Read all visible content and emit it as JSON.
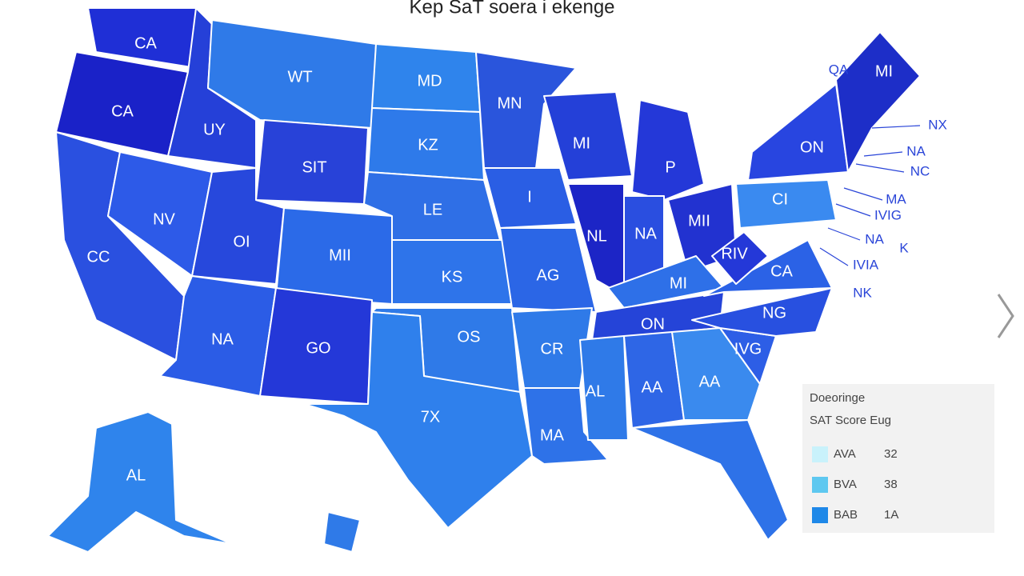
{
  "title": "Kep  SaT soera i ekenge",
  "regions": [
    {
      "label": "CA",
      "color": "#1f2fd6"
    },
    {
      "label": "CA",
      "color": "#1a22c8"
    },
    {
      "label": "CC",
      "color": "#2a50e0"
    },
    {
      "label": "NV",
      "color": "#2d5ae8"
    },
    {
      "label": "UY",
      "color": "#2540d8"
    },
    {
      "label": "WT",
      "color": "#2f7ae8"
    },
    {
      "label": "SIT",
      "color": "#2842d8"
    },
    {
      "label": "OI",
      "color": "#2748dc"
    },
    {
      "label": "MII",
      "color": "#2b6ae8"
    },
    {
      "label": "NA",
      "color": "#2b5ce6"
    },
    {
      "label": "GO",
      "color": "#2438d8"
    },
    {
      "label": "MD",
      "color": "#2f84ec"
    },
    {
      "label": "KZ",
      "color": "#2e7aea"
    },
    {
      "label": "LE",
      "color": "#2f6fe6"
    },
    {
      "label": "KS",
      "color": "#2e74ea"
    },
    {
      "label": "OS",
      "color": "#2f7ae8"
    },
    {
      "label": "7X",
      "color": "#2f80ec"
    },
    {
      "label": "MN",
      "color": "#2a55dc"
    },
    {
      "label": "I",
      "color": "#2a5ee4"
    },
    {
      "label": "AG",
      "color": "#2b66e6"
    },
    {
      "label": "CR",
      "color": "#2f7ae8"
    },
    {
      "label": "MA",
      "color": "#2e72e8"
    },
    {
      "label": "MI",
      "color": "#2440d8"
    },
    {
      "label": "P",
      "color": "#2438d8"
    },
    {
      "label": "NL",
      "color": "#1c25c6"
    },
    {
      "label": "NA",
      "color": "#2a4ee0"
    },
    {
      "label": "MII",
      "color": "#2232d0"
    },
    {
      "label": "MI",
      "color": "#2e70e8"
    },
    {
      "label": "ON",
      "color": "#2544d8"
    },
    {
      "label": "AL",
      "color": "#2f7ae8"
    },
    {
      "label": "AA",
      "color": "#2e66e6"
    },
    {
      "label": "AA",
      "color": "#3a8aee"
    },
    {
      "color": "#2e72e8"
    },
    {
      "label": "IVG",
      "color": "#2d5ee6"
    },
    {
      "label": "NG",
      "color": "#2850e0"
    },
    {
      "label": "CA",
      "color": "#2b62e6"
    },
    {
      "label": "RIV",
      "color": "#2438d8"
    },
    {
      "label": "CI",
      "color": "#3a8af0"
    },
    {
      "label": "ON",
      "color": "#2845e0"
    },
    {
      "label": "MI",
      "color": "#1d2ec8"
    },
    {
      "label": "AL",
      "color": "#2f84ec"
    },
    {
      "color": "#2f7ae8"
    }
  ],
  "callouts": [
    "QA",
    "NX",
    "NA",
    "NC",
    "MA",
    "IVIG",
    "NA",
    "K",
    "IVIA",
    "NK"
  ],
  "legend": {
    "title": "Doeoringe",
    "subtitle": "SAT Score Eug",
    "items": [
      {
        "label": "AVA",
        "value": "32",
        "color": "#c9f2fb"
      },
      {
        "label": "BVA",
        "value": "38",
        "color": "#5ec8f0"
      },
      {
        "label": "BAB",
        "value": "1A",
        "color": "#1e88e8"
      }
    ]
  }
}
